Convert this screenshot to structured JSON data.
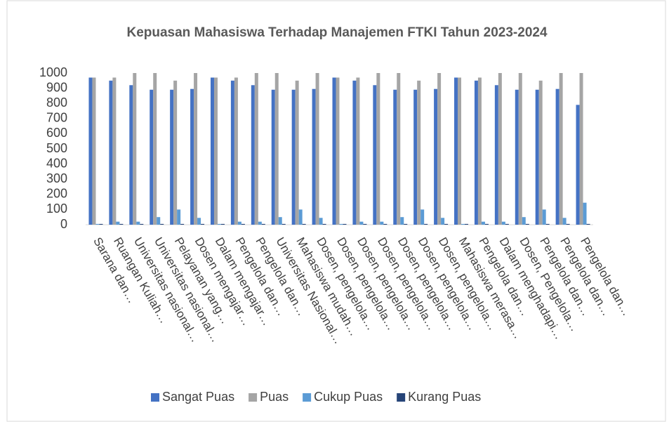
{
  "chart_data": {
    "type": "bar",
    "title": "Kepuasan Mahasiswa Terhadap Manajemen FTKI Tahun 2023-2024",
    "categories": [
      "Sarana dan…",
      "Ruangan Kuliah…",
      "Universitas nasional…",
      "Universitas nasional…",
      "Pelayanan yang…",
      "Dosen mengajar…",
      "Dalam mengajar…",
      "Pengelola dan…",
      "Pengelola dan…",
      "Universitas Nasional…",
      "Mahasiswa mudah…",
      "Dosen, pengelola…",
      "Dosen, pengelola…",
      "Dosen, pengelola…",
      "Dosen, pengelola…",
      "Dosen, pengelola…",
      "Dosen, pengelola…",
      "Dosen, pengelola…",
      "Mahasiswa merasa…",
      "Pengelola dan…",
      "Dalam menghadapi…",
      "Dosen, Pengelola…",
      "Pengelola dan…",
      "Pengelola dan…",
      "Pengelola dan…"
    ],
    "series": [
      {
        "name": "Sangat Puas",
        "color": "#4472c4",
        "values": [
          970,
          950,
          920,
          890,
          890,
          895,
          970,
          950,
          920,
          890,
          890,
          895,
          970,
          950,
          920,
          890,
          890,
          895,
          970,
          950,
          920,
          890,
          890,
          895,
          790
        ]
      },
      {
        "name": "Puas",
        "color": "#a5a5a5",
        "values": [
          970,
          970,
          1000,
          1000,
          950,
          1000,
          970,
          970,
          1000,
          1000,
          950,
          1000,
          970,
          970,
          1000,
          1000,
          950,
          1000,
          970,
          970,
          1000,
          1000,
          950,
          1000,
          1000
        ]
      },
      {
        "name": "Cukup Puas",
        "color": "#5b9bd5",
        "values": [
          5,
          20,
          20,
          50,
          100,
          45,
          5,
          20,
          20,
          50,
          100,
          45,
          5,
          20,
          20,
          50,
          100,
          45,
          5,
          20,
          20,
          50,
          100,
          45,
          145
        ]
      },
      {
        "name": "Kurang Puas",
        "color": "#264478",
        "values": [
          5,
          5,
          5,
          5,
          5,
          5,
          5,
          5,
          5,
          5,
          5,
          5,
          5,
          5,
          5,
          5,
          5,
          5,
          5,
          5,
          5,
          5,
          5,
          5,
          5
        ]
      }
    ],
    "ylim": [
      0,
      1000
    ],
    "yticks": [
      0,
      100,
      200,
      300,
      400,
      500,
      600,
      700,
      800,
      900,
      1000
    ],
    "grid": false,
    "legend": "bottom"
  }
}
